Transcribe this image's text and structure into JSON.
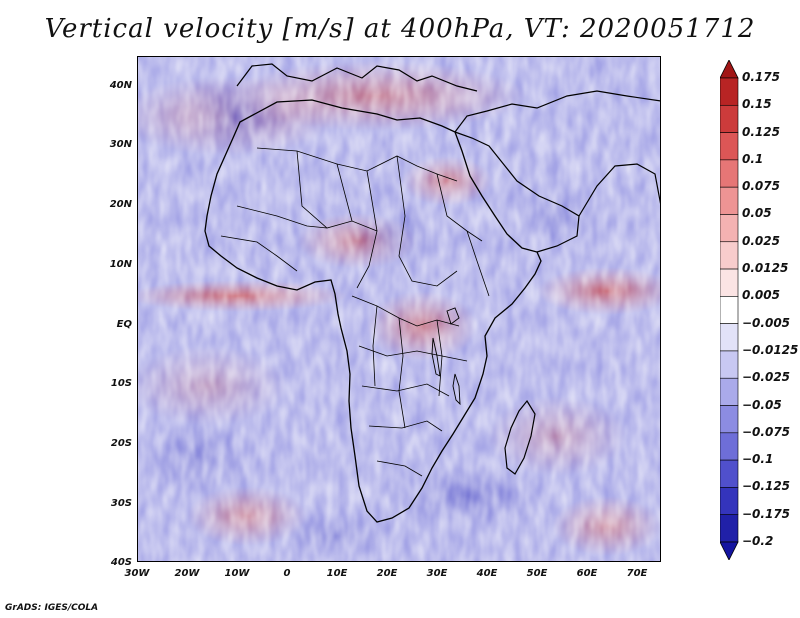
{
  "title": "Vertical velocity [m/s] at 400hPa, VT: 2020051712",
  "map": {
    "region": "Africa and surroundings",
    "projection": "lat-lon",
    "lat_labels": [
      "40N",
      "30N",
      "20N",
      "10N",
      "EQ",
      "10S",
      "20S",
      "30S",
      "40S"
    ],
    "lon_labels": [
      "30W",
      "20W",
      "10W",
      "0",
      "10E",
      "20E",
      "30E",
      "40E",
      "50E",
      "60E",
      "70E"
    ],
    "border_color": "#000000",
    "field": "vertical velocity"
  },
  "colorbar": {
    "labels": [
      "0.175",
      "0.15",
      "0.125",
      "0.1",
      "0.075",
      "0.05",
      "0.025",
      "0.0125",
      "0.005",
      "−0.005",
      "−0.0125",
      "−0.025",
      "−0.05",
      "−0.075",
      "−0.1",
      "−0.125",
      "−0.175",
      "−0.2"
    ],
    "colors": [
      "#a11616",
      "#b82424",
      "#cc3b3b",
      "#dc5656",
      "#e67676",
      "#ee9494",
      "#f4b2b2",
      "#f8cccc",
      "#fbe4e4",
      "#ffffff",
      "#e2e2f8",
      "#c8c8f2",
      "#aaaaea",
      "#8c8ce2",
      "#6e6ed8",
      "#5050cc",
      "#3434bc",
      "#2020a8",
      "#1414a0"
    ]
  },
  "footer": "GrADS: IGES/COLA"
}
